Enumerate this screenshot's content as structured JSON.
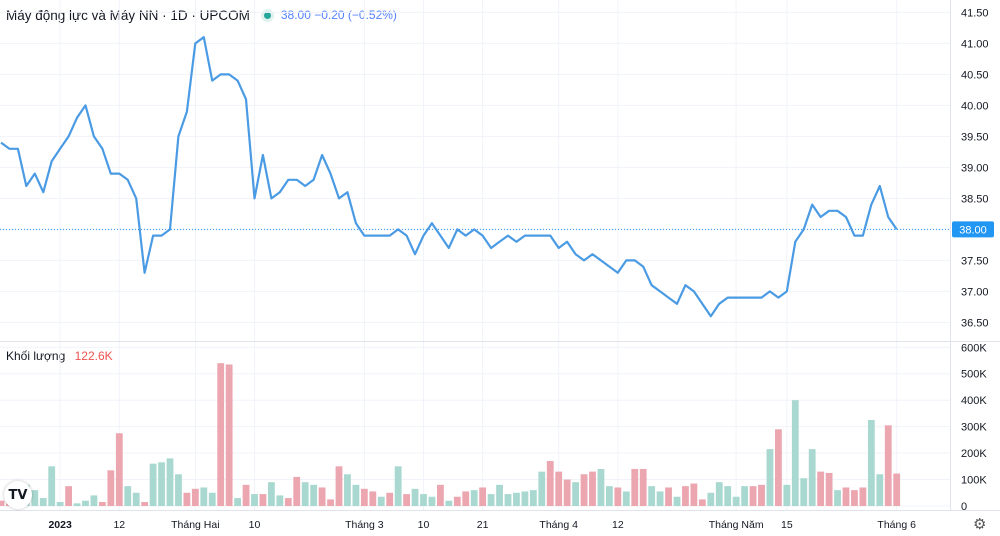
{
  "header": {
    "title": "Máy động lực và Máy NN · 1D · UPCOM",
    "quote": "38.00 −0.20 (−0.52%)"
  },
  "volume_header": {
    "label": "Khối lượng",
    "value": "122.6K"
  },
  "price_label": "38.00",
  "logo_text": "TV",
  "icons": {
    "settings": "gear-icon",
    "logo": "tradingview-logo-icon",
    "status": "dot-icon"
  },
  "colors": {
    "line": "#4a9be4",
    "up": "#26a69a",
    "down": "#ef5350",
    "up_bar": "#a8d8d0",
    "down_bar": "#eba6b0",
    "price_tag": "#2196f3"
  },
  "chart_data": [
    {
      "type": "line",
      "ylim": [
        36.2,
        41.7
      ],
      "yticks": [
        36.5,
        37.0,
        37.5,
        38.0,
        38.5,
        39.0,
        39.5,
        40.0,
        40.5,
        41.0,
        41.5
      ],
      "ytick_labels": [
        "36.50",
        "37.00",
        "37.50",
        "38.00",
        "38.50",
        "39.00",
        "39.50",
        "40.00",
        "40.50",
        "41.00",
        "41.50"
      ],
      "xtick_labels": [
        "2023",
        "12",
        "Tháng Hai",
        "10",
        "Tháng 3",
        "10",
        "21",
        "Tháng 4",
        "12",
        "Tháng Năm",
        "15",
        "Tháng 6"
      ],
      "xtick_index": [
        7,
        14,
        23,
        30,
        43,
        50,
        57,
        66,
        73,
        87,
        93,
        106
      ],
      "values": [
        39.4,
        39.3,
        39.3,
        38.7,
        38.9,
        38.6,
        39.1,
        39.3,
        39.5,
        39.8,
        40.0,
        39.5,
        39.3,
        38.9,
        38.9,
        38.8,
        38.5,
        37.3,
        37.9,
        37.9,
        38.0,
        39.5,
        39.9,
        41.0,
        41.1,
        40.4,
        40.5,
        40.5,
        40.4,
        40.1,
        38.5,
        39.2,
        38.5,
        38.6,
        38.8,
        38.8,
        38.7,
        38.8,
        39.2,
        38.9,
        38.5,
        38.6,
        38.1,
        37.9,
        37.9,
        37.9,
        37.9,
        38.0,
        37.9,
        37.6,
        37.9,
        38.1,
        37.9,
        37.7,
        38.0,
        37.9,
        38.0,
        37.9,
        37.7,
        37.8,
        37.9,
        37.8,
        37.9,
        37.9,
        37.9,
        37.9,
        37.7,
        37.8,
        37.6,
        37.5,
        37.6,
        37.5,
        37.4,
        37.3,
        37.5,
        37.5,
        37.4,
        37.1,
        37.0,
        36.9,
        36.8,
        37.1,
        37.0,
        36.8,
        36.6,
        36.8,
        36.9,
        36.9,
        36.9,
        36.9,
        36.9,
        37.0,
        36.9,
        37.0,
        37.8,
        38.0,
        38.4,
        38.2,
        38.3,
        38.3,
        38.2,
        37.9,
        37.9,
        38.4,
        38.7,
        38.2,
        38.0
      ]
    },
    {
      "type": "bar",
      "ylim": [
        0,
        620
      ],
      "yticks": [
        0,
        100,
        200,
        300,
        400,
        500,
        600
      ],
      "ytick_labels": [
        "0",
        "100K",
        "200K",
        "300K",
        "400K",
        "500K",
        "600K"
      ],
      "values": [
        20,
        10,
        5,
        80,
        60,
        30,
        150,
        15,
        75,
        10,
        20,
        40,
        15,
        135,
        275,
        75,
        50,
        15,
        160,
        165,
        180,
        120,
        50,
        65,
        70,
        50,
        540,
        535,
        30,
        80,
        45,
        45,
        90,
        40,
        30,
        110,
        90,
        80,
        70,
        25,
        150,
        120,
        80,
        65,
        55,
        35,
        50,
        150,
        45,
        65,
        45,
        35,
        80,
        20,
        35,
        55,
        60,
        70,
        45,
        80,
        45,
        50,
        55,
        60,
        130,
        170,
        130,
        100,
        90,
        120,
        130,
        140,
        75,
        70,
        55,
        140,
        140,
        75,
        55,
        70,
        35,
        75,
        85,
        25,
        50,
        90,
        75,
        35,
        75,
        75,
        80,
        215,
        290,
        80,
        400,
        105,
        215,
        130,
        125,
        60,
        70,
        60,
        70,
        325,
        120,
        305,
        122.6
      ],
      "directions": [
        "d",
        "d",
        "u",
        "u",
        "u",
        "u",
        "u",
        "u",
        "d",
        "u",
        "u",
        "u",
        "d",
        "d",
        "d",
        "u",
        "u",
        "d",
        "u",
        "u",
        "u",
        "u",
        "d",
        "d",
        "u",
        "u",
        "d",
        "d",
        "u",
        "d",
        "u",
        "d",
        "u",
        "u",
        "d",
        "d",
        "u",
        "u",
        "d",
        "d",
        "d",
        "u",
        "u",
        "d",
        "d",
        "u",
        "d",
        "u",
        "d",
        "u",
        "u",
        "u",
        "d",
        "u",
        "d",
        "d",
        "u",
        "d",
        "u",
        "u",
        "u",
        "u",
        "u",
        "u",
        "u",
        "d",
        "d",
        "d",
        "u",
        "d",
        "d",
        "u",
        "u",
        "d",
        "u",
        "d",
        "d",
        "u",
        "u",
        "d",
        "u",
        "d",
        "d",
        "d",
        "u",
        "u",
        "u",
        "u",
        "u",
        "d",
        "d",
        "u",
        "d",
        "u",
        "u",
        "u",
        "u",
        "d",
        "d",
        "u",
        "d",
        "d",
        "d",
        "u",
        "u",
        "d",
        "d"
      ]
    }
  ]
}
